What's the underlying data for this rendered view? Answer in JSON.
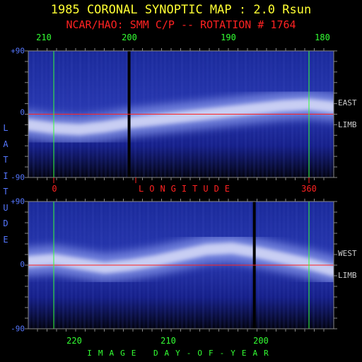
{
  "chart_data": {
    "type": "heatmap",
    "title": "1985 CORONAL SYNOPTIC MAP : 2.0 Rsun",
    "subtitle": "NCAR/HAO: SMM C/P -- ROTATION # 1764",
    "top_axis_ticks": [
      "210",
      "200",
      "190",
      "180"
    ],
    "middle_axis": {
      "label": "LONGITUDE",
      "ticks": [
        "0",
        "360"
      ]
    },
    "bottom_axis": {
      "label": "IMAGE DAY-OF-YEAR",
      "ticks": [
        "220",
        "210",
        "200"
      ]
    },
    "ylabel": "LATITUDE",
    "ylim": [
      -90,
      90
    ],
    "y_ticks": [
      "+90",
      "0",
      "-90"
    ],
    "panels": [
      {
        "limb": "EAST LIMB",
        "limb_line1": "EAST",
        "limb_line2": "LIMB",
        "streamer_belt_latitude": [
          -15,
          -20,
          -22,
          -18,
          -12,
          -8,
          -4,
          0,
          4,
          8,
          12,
          14,
          10
        ],
        "data_gap_x": 0.33
      },
      {
        "limb": "WEST LIMB",
        "limb_line1": "WEST",
        "limb_line2": "LIMB",
        "streamer_belt_latitude": [
          5,
          8,
          2,
          -4,
          0,
          6,
          14,
          22,
          24,
          18,
          10,
          2,
          -8
        ],
        "data_gap_x": 0.74
      }
    ],
    "colors": {
      "background": "#000000",
      "title": "#ffff33",
      "subtitle": "#ff2222",
      "axis_ticks": "#33ff33",
      "latitude": "#5577ff",
      "equator_line": "#ff2222",
      "reference_lines": "#33ff33",
      "limb_text": "#cccccc",
      "frame": "#888888"
    }
  }
}
